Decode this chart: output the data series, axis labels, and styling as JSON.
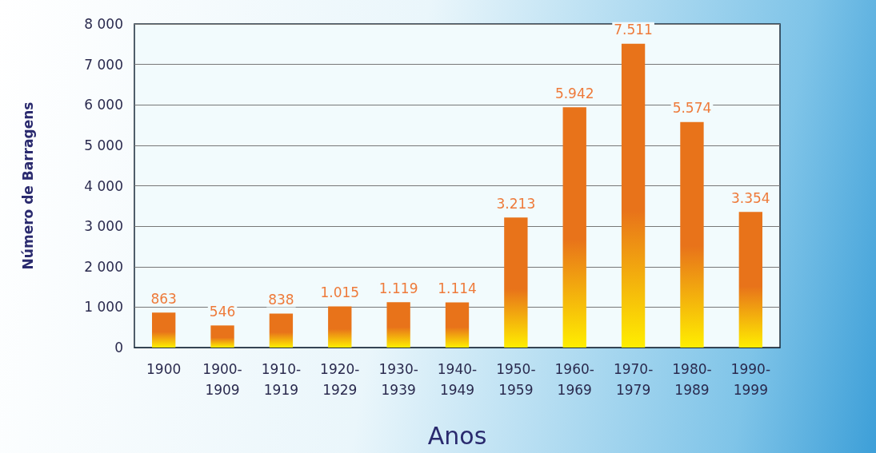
{
  "chart_data": {
    "type": "bar",
    "xlabel": "Anos",
    "ylabel": "Número de Barragens",
    "categories": [
      "1900",
      "1900-1909",
      "1910-1919",
      "1920-1929",
      "1930-1939",
      "1940-1949",
      "1950-1959",
      "1960-1969",
      "1970-1979",
      "1980-1989",
      "1990-1999"
    ],
    "values": [
      863,
      546,
      838,
      1015,
      1119,
      1114,
      3213,
      5942,
      7511,
      5574,
      3354
    ],
    "value_labels": [
      "863",
      "546",
      "838",
      "1.015",
      "1.119",
      "1.114",
      "3.213",
      "5.942",
      "7.511",
      "5.574",
      "3.354"
    ],
    "color": "#e8731a",
    "ylim": [
      0,
      8000
    ],
    "yticks": [
      0,
      {
        "value": 1000,
        "label": "1 000"
      },
      {
        "value": 2000,
        "label": "2 000"
      },
      {
        "value": 3000,
        "label": "3 000"
      },
      {
        "value": 4000,
        "label": "4 000"
      },
      {
        "value": 5000,
        "label": "5 000"
      },
      {
        "value": 6000,
        "label": "6 000"
      },
      {
        "value": 7000,
        "label": "7 000"
      },
      {
        "value": 8000,
        "label": "8 000"
      }
    ],
    "grid": "y"
  }
}
